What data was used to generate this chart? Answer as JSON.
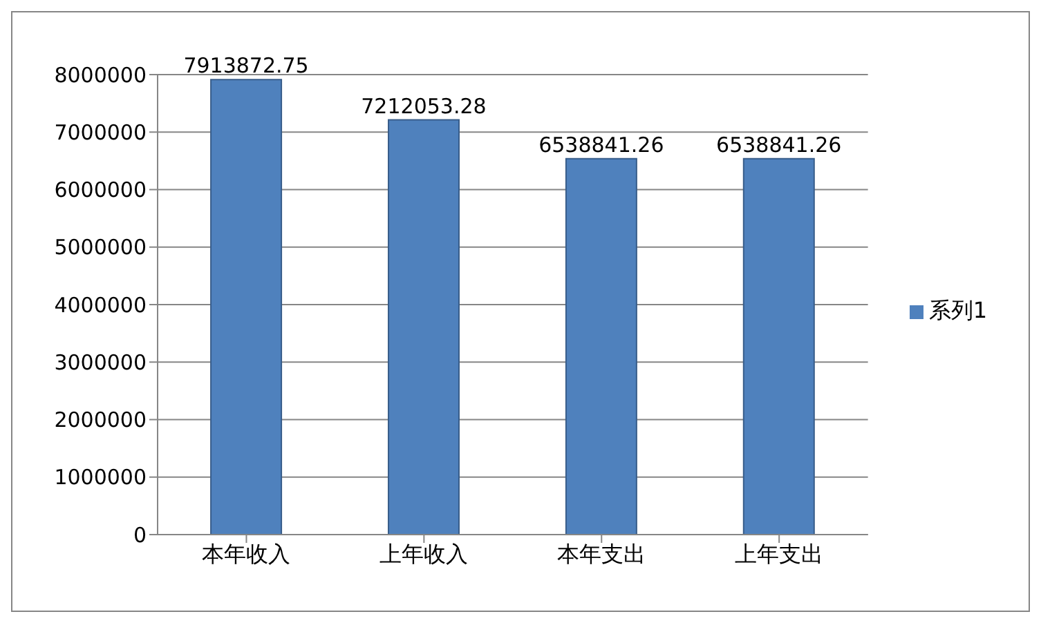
{
  "chart_data": {
    "type": "bar",
    "categories": [
      "本年收入",
      "上年收入",
      "本年支出",
      "上年支出"
    ],
    "series": [
      {
        "name": "系列1",
        "color": "#4f81bd",
        "values": [
          7913872.75,
          7212053.28,
          6538841.26,
          6538841.26
        ]
      }
    ],
    "ylim": [
      0,
      8000000
    ],
    "yticks": [
      0,
      1000000,
      2000000,
      3000000,
      4000000,
      5000000,
      6000000,
      7000000,
      8000000
    ],
    "grid": "y",
    "legend": "right",
    "data_labels": true
  }
}
